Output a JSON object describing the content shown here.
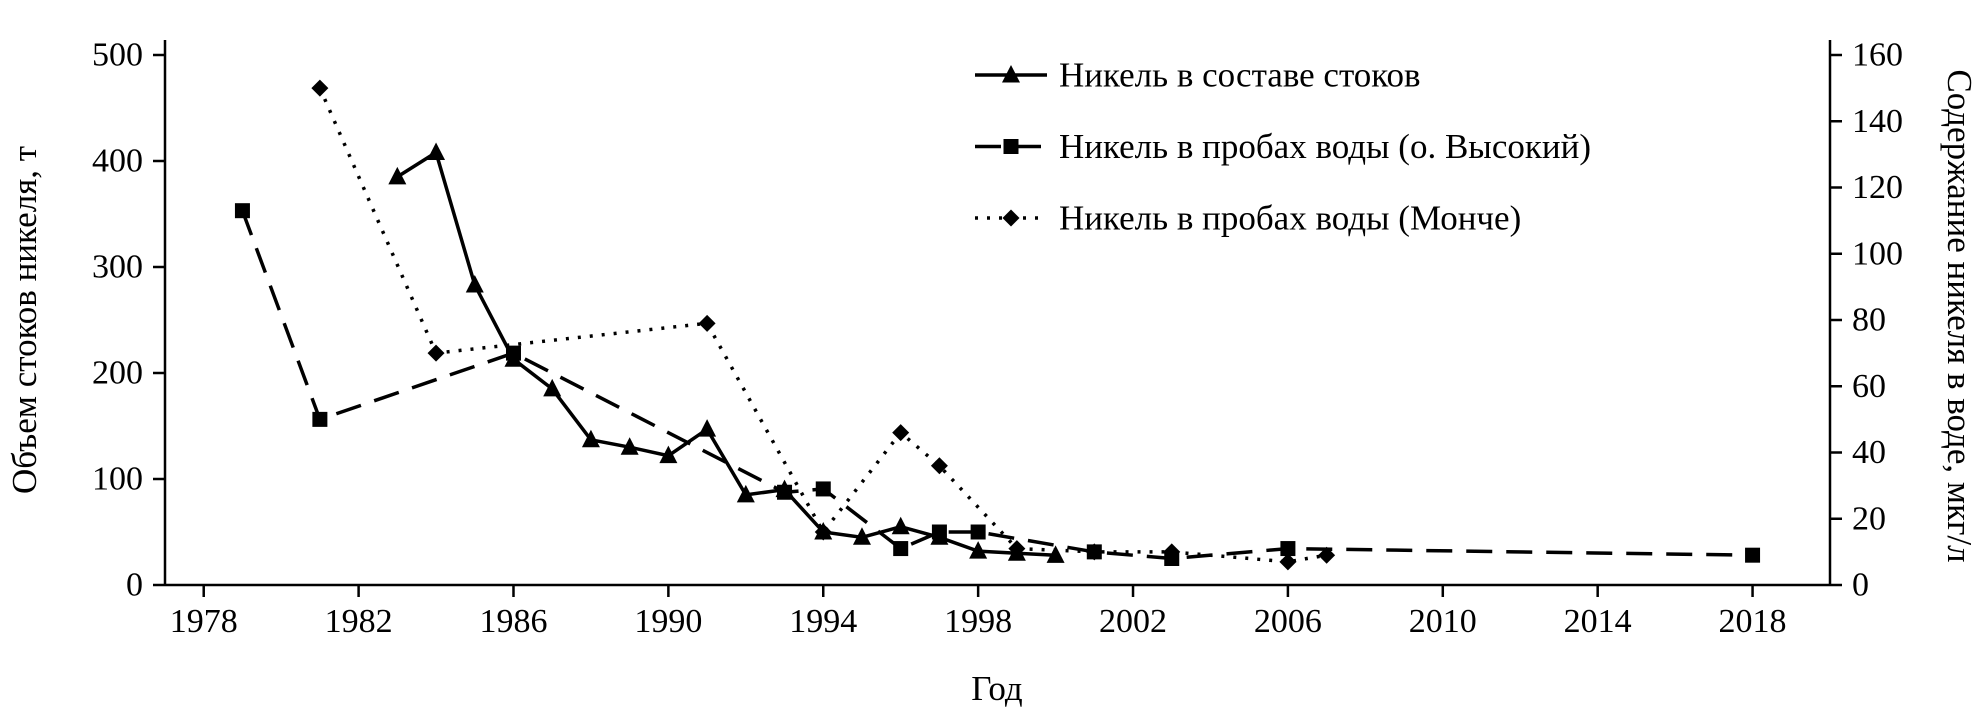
{
  "figure": {
    "background": "#ffffff",
    "line_color": "#000000"
  },
  "chart_data": {
    "type": "line",
    "title": "",
    "xlabel": "Год",
    "ylabel_left": "Объем стоков никеля, т",
    "ylabel_right": "Содержание никеля в воде, мкг/л",
    "grid": false,
    "legend_position": "top-center",
    "x_axis": {
      "min": 1977,
      "max": 2020,
      "ticks": [
        1978,
        1982,
        1986,
        1990,
        1994,
        1998,
        2002,
        2006,
        2010,
        2014,
        2018
      ]
    },
    "y_axis_left": {
      "min": 0,
      "max": 500,
      "ticks": [
        0,
        100,
        200,
        300,
        400,
        500
      ]
    },
    "y_axis_right": {
      "min": 0,
      "max": 160,
      "ticks": [
        0,
        20,
        40,
        60,
        80,
        100,
        120,
        140,
        160
      ]
    },
    "series": [
      {
        "name": "Никель в составе стоков",
        "axis": "left",
        "unit": "т",
        "line_style": "solid",
        "marker": "triangle",
        "color": "#000000",
        "points": [
          [
            1983,
            385
          ],
          [
            1984,
            408
          ],
          [
            1985,
            283
          ],
          [
            1986,
            213
          ],
          [
            1987,
            185
          ],
          [
            1988,
            137
          ],
          [
            1989,
            130
          ],
          [
            1990,
            122
          ],
          [
            1991,
            147
          ],
          [
            1992,
            85
          ],
          [
            1993,
            90
          ],
          [
            1994,
            50
          ],
          [
            1995,
            45
          ],
          [
            1996,
            55
          ],
          [
            1997,
            45
          ],
          [
            1998,
            32
          ],
          [
            1999,
            30
          ],
          [
            2000,
            28
          ]
        ]
      },
      {
        "name": "Никель в пробах воды (о. Высокий)",
        "axis": "right",
        "unit": "мкг/л",
        "line_style": "dashed",
        "marker": "square",
        "color": "#000000",
        "points": [
          [
            1979,
            113
          ],
          [
            1981,
            50
          ],
          [
            1986,
            70
          ],
          [
            1993,
            28
          ],
          [
            1994,
            29
          ],
          [
            1996,
            11
          ],
          [
            1997,
            16
          ],
          [
            1998,
            16
          ],
          [
            2001,
            10
          ],
          [
            2003,
            8
          ],
          [
            2006,
            11
          ],
          [
            2018,
            9
          ]
        ]
      },
      {
        "name": "Никель в пробах воды (Монче)",
        "axis": "right",
        "unit": "мкг/л",
        "line_style": "dotted",
        "marker": "diamond",
        "color": "#000000",
        "points": [
          [
            1981,
            150
          ],
          [
            1984,
            70
          ],
          [
            1991,
            79
          ],
          [
            1994,
            16
          ],
          [
            1996,
            46
          ],
          [
            1997,
            36
          ],
          [
            1999,
            11
          ],
          [
            2001,
            10
          ],
          [
            2003,
            10
          ],
          [
            2006,
            7
          ],
          [
            2007,
            9
          ]
        ]
      }
    ]
  }
}
